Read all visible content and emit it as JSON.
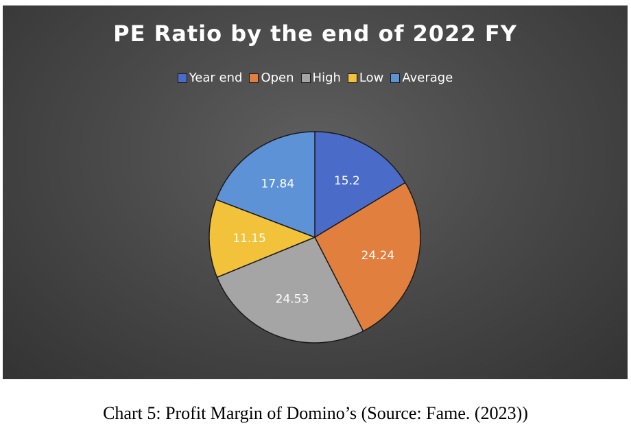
{
  "caption": "Chart 5: Profit Margin of Domino’s (Source: Fame. (2023))",
  "chart_data": {
    "type": "pie",
    "title": "PE Ratio by the end of 2022 FY",
    "legend_position": "top",
    "categories": [
      "Year end",
      "Open",
      "High",
      "Low",
      "Average"
    ],
    "values": [
      15.2,
      24.24,
      24.53,
      11.15,
      17.84
    ],
    "labels": [
      "15.2",
      "24.24",
      "24.53",
      "11.15",
      "17.84"
    ],
    "colors": [
      "#4a6bc8",
      "#e07f3e",
      "#a5a5a5",
      "#f2c23a",
      "#5e92d6"
    ]
  }
}
